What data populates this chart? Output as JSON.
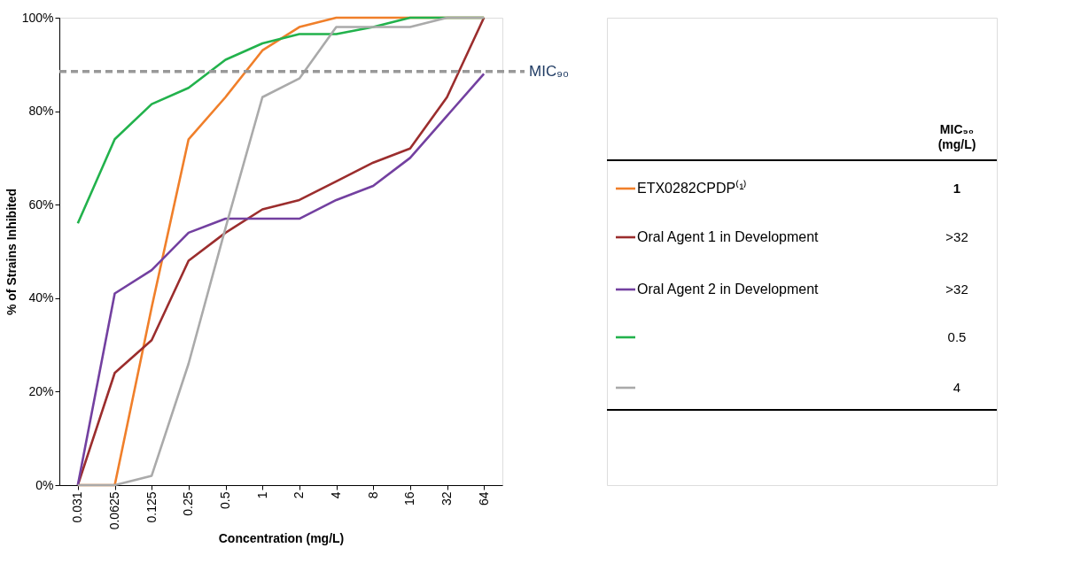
{
  "chart_data": {
    "type": "line",
    "xlabel": "Concentration (mg/L)",
    "ylabel": "% of Strains Inhibited",
    "categories": [
      "0.031",
      "0.0625",
      "0.125",
      "0.25",
      "0.5",
      "1",
      "2",
      "4",
      "8",
      "16",
      "32",
      "64"
    ],
    "series": [
      {
        "name": "ETX0282CPDP⁽¹⁾",
        "color": "#f07f2a",
        "values": [
          0,
          0,
          38,
          74,
          83,
          93,
          98,
          100,
          100,
          100,
          100,
          100
        ]
      },
      {
        "name": "Oral Agent 1 in Development",
        "color": "#9b2d2d",
        "values": [
          0,
          24,
          31,
          48,
          54,
          59,
          61,
          65,
          69,
          72,
          83,
          100
        ]
      },
      {
        "name": "Oral Agent 2 in Development",
        "color": "#7340a0",
        "values": [
          0,
          41,
          46,
          54,
          57,
          57,
          57,
          61,
          64,
          70,
          79,
          88
        ]
      },
      {
        "name": null,
        "color": "#22b24c",
        "values": [
          56,
          74,
          81.5,
          85,
          91,
          94.5,
          96.5,
          96.5,
          98,
          100,
          100,
          100
        ]
      },
      {
        "name": null,
        "color": "#aaaaaa",
        "values": [
          0,
          0,
          2,
          26,
          55,
          83,
          87,
          98,
          98,
          98,
          100,
          100
        ]
      }
    ],
    "ylim": [
      0,
      100
    ],
    "yticks": [
      {
        "value": 0,
        "label": "0%"
      },
      {
        "value": 20,
        "label": "20%"
      },
      {
        "value": 40,
        "label": "40%"
      },
      {
        "value": 60,
        "label": "60%"
      },
      {
        "value": 80,
        "label": "80%"
      },
      {
        "value": 100,
        "label": "100%"
      }
    ],
    "ref_lines": [
      {
        "axis": "y",
        "value": 88.5,
        "label": "MIC₉₀",
        "color": "#999999",
        "line_style": "dashed"
      }
    ],
    "annotations": [
      "MIC₉₀ (mg/L)",
      "1",
      ">32",
      ">32",
      "0.5",
      "4"
    ],
    "legend": "right",
    "grid": false,
    "line_style": "solid",
    "marker": "none"
  }
}
